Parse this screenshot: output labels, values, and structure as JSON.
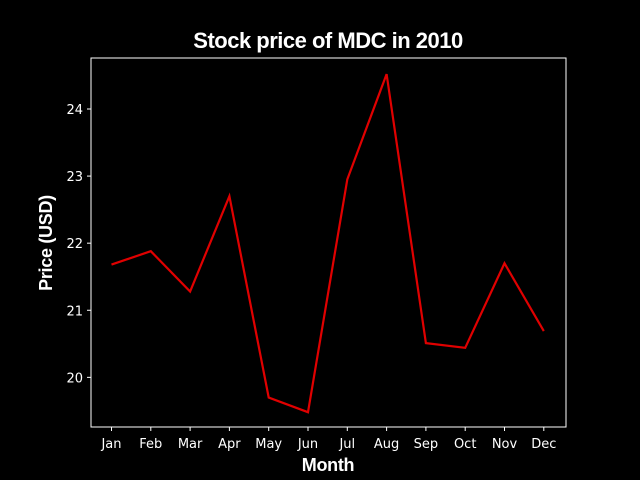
{
  "chart_data": {
    "type": "line",
    "title": "Stock price of MDC in 2010",
    "xlabel": "Month",
    "ylabel": "Price (USD)",
    "categories": [
      "Jan",
      "Feb",
      "Mar",
      "Apr",
      "May",
      "Jun",
      "Jul",
      "Aug",
      "Sep",
      "Oct",
      "Nov",
      "Dec"
    ],
    "series": [
      {
        "values": [
          21.68,
          21.88,
          21.28,
          22.7,
          19.7,
          19.48,
          22.95,
          24.52,
          20.51,
          20.44,
          21.7,
          20.69
        ]
      }
    ],
    "ylim": [
      19.26,
      24.76
    ],
    "yticks": [
      "20",
      "21",
      "22",
      "23",
      "24"
    ],
    "grid": false,
    "legend": "none",
    "colors": {
      "background": "#000000",
      "axes": "#ffffff",
      "line": "#e00000",
      "text": "#ffffff"
    }
  }
}
